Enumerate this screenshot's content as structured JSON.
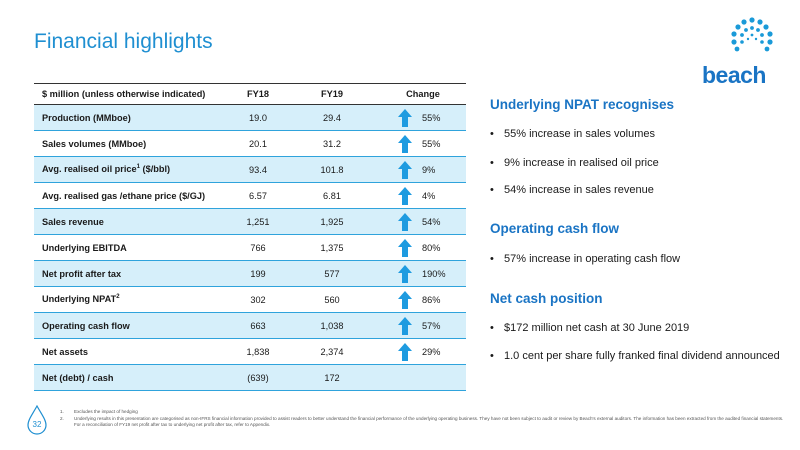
{
  "title": "Financial highlights",
  "logo": {
    "text": "beach"
  },
  "table": {
    "header": {
      "label": "$ million (unless otherwise indicated)",
      "fy18": "FY18",
      "fy19": "FY19",
      "change": "Change"
    },
    "rows": [
      {
        "label": "Production (MMboe)",
        "fy18": "19.0",
        "fy19": "29.4",
        "change": "55%",
        "arrow": true
      },
      {
        "label": "Sales volumes (MMboe)",
        "fy18": "20.1",
        "fy19": "31.2",
        "change": "55%",
        "arrow": true
      },
      {
        "label": "Avg. realised oil price",
        "sup": "1",
        "label_suffix": " ($/bbl)",
        "fy18": "93.4",
        "fy19": "101.8",
        "change": "9%",
        "arrow": true
      },
      {
        "label": "Avg. realised gas /ethane price ($/GJ)",
        "fy18": "6.57",
        "fy19": "6.81",
        "change": "4%",
        "arrow": true
      },
      {
        "label": "Sales revenue",
        "fy18": "1,251",
        "fy19": "1,925",
        "change": "54%",
        "arrow": true
      },
      {
        "label": "Underlying EBITDA",
        "fy18": "766",
        "fy19": "1,375",
        "change": "80%",
        "arrow": true
      },
      {
        "label": "Net profit after tax",
        "fy18": "199",
        "fy19": "577",
        "change": "190%",
        "arrow": true
      },
      {
        "label": "Underlying NPAT",
        "sup": "2",
        "label_suffix": "",
        "fy18": "302",
        "fy19": "560",
        "change": "86%",
        "arrow": true
      },
      {
        "label": "Operating cash flow",
        "fy18": "663",
        "fy19": "1,038",
        "change": "57%",
        "arrow": true
      },
      {
        "label": "Net assets",
        "fy18": "1,838",
        "fy19": "2,374",
        "change": "29%",
        "arrow": true
      },
      {
        "label": "Net (debt) / cash",
        "fy18": "(639)",
        "fy19": "172",
        "change": "",
        "arrow": false
      }
    ]
  },
  "sections": [
    {
      "heading": "Underlying NPAT recognises",
      "bullets": [
        "55% increase in sales volumes",
        "9% increase in realised oil price",
        "54% increase in sales revenue"
      ]
    },
    {
      "heading": "Operating cash flow",
      "bullets": [
        "57% increase in operating cash flow"
      ]
    },
    {
      "heading": "Net cash position",
      "bullets": [
        "$172 million net cash at 30 June 2019",
        "1.0 cent per share fully franked final dividend announced"
      ]
    }
  ],
  "page_number": "32",
  "footnotes": [
    {
      "n": "1.",
      "text": "Excludes the impact of hedging"
    },
    {
      "n": "2.",
      "text": "Underlying results in this presentation are categorised as non-IFRS financial information provided to assist readers to better understand the financial performance of the underlying operating business. They have not been subject to audit or review by Beach's external auditors. The information has been extracted from the audited financial statements. For a reconciliation of FY19 net profit after tax to underlying net profit after tax, refer to Appendix."
    }
  ],
  "colors": {
    "accent": "#1f8fd1",
    "row_alt": "#d6effa",
    "rule": "#2fa3dc",
    "arrow": "#1e9be0"
  }
}
